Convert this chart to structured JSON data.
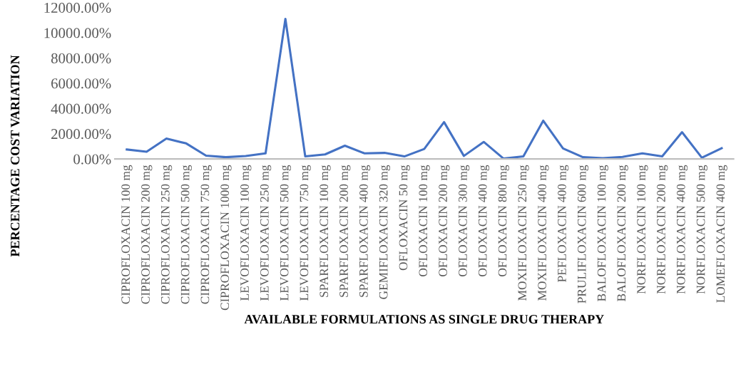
{
  "chart_data": {
    "type": "line",
    "xlabel": "AVAILABLE FORMULATIONS AS SINGLE DRUG THERAPY",
    "ylabel": "PERCENTAGE COST VARIATION",
    "categories": [
      "CIPROFLOXACIN 100 mg",
      "CIPROFLOXACIN 200 mg",
      "CIPROFLOXACIN 250 mg",
      "CIPROFLOXACIN 500 mg",
      "CIPROFLOXACIN 750 mg",
      "CIPROFLOXACIN 1000 mg",
      "LEVOFLOXACIN 100 mg",
      "LEVOFLOXACIN 250 mg",
      "LEVOFLOXACIN 500 mg",
      "LEVOFLOXACIN 750 mg",
      "SPARFLOXACIN 100 mg",
      "SPARFLOXACIN 200 mg",
      "SPARFLOXACIN 400 mg",
      "GEMIFLOXACIN 320 mg",
      "OFLOXACIN 50 mg",
      "OFLOXACIN 100 mg",
      "OFLOXACIN 200 mg",
      "OFLOXACIN 300 mg",
      "OFLOXACIN 400 mg",
      "OFLOXACIN 800 mg",
      "MOXIFLOXACIN 250 mg",
      "MOXIFLOXACIN 400 mg",
      "PEFLOXACIN 400 mg",
      "PRULIFLOXACIN 600 mg",
      "BALOFLOXACIN 100 mg",
      "BALOFLOXACIN 200 mg",
      "NORFLOXACIN 100 mg",
      "NORFLOXACIN 200 mg",
      "NORFLOXACIN 400 mg",
      "NORFLOXACIN 500 mg",
      "LOMEFLOXACIN 400 mg"
    ],
    "series": [
      {
        "color": "#4472c4",
        "values": [
          750,
          570,
          1620,
          1230,
          260,
          140,
          230,
          440,
          11100,
          200,
          360,
          1050,
          440,
          480,
          200,
          790,
          2920,
          240,
          1350,
          30,
          200,
          3030,
          830,
          140,
          60,
          160,
          440,
          200,
          2120,
          100,
          850
        ]
      }
    ],
    "ylim": [
      0,
      12000
    ],
    "yticks": [
      {
        "value": 0,
        "label": "0.00%"
      },
      {
        "value": 2000,
        "label": "2000.00%"
      },
      {
        "value": 4000,
        "label": "4000.00%"
      },
      {
        "value": 6000,
        "label": "6000.00%"
      },
      {
        "value": 8000,
        "label": "8000.00%"
      },
      {
        "value": 10000,
        "label": "10000.00%"
      },
      {
        "value": 12000,
        "label": "12000.00%"
      }
    ],
    "grid": false,
    "marker": "none",
    "line_style": "solid"
  }
}
